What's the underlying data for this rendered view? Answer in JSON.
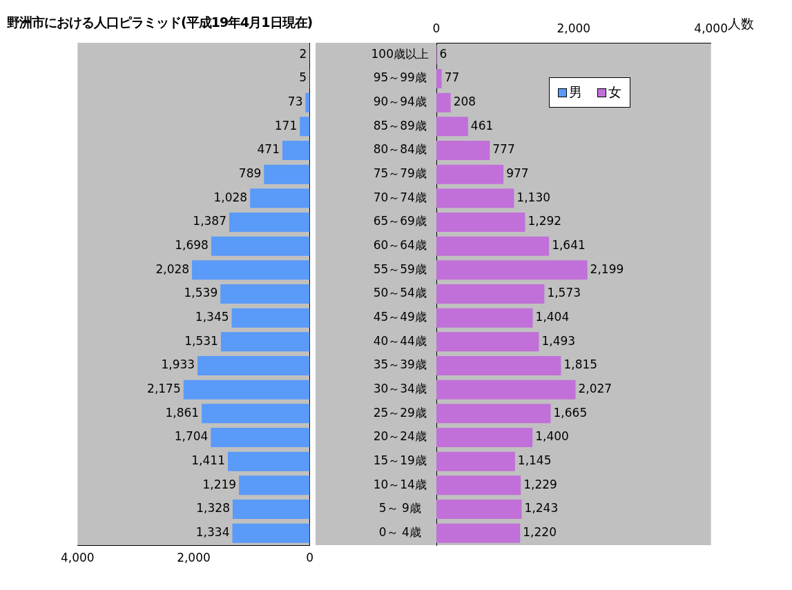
{
  "chart_data": [
    {
      "type": "bar",
      "orientation": "horizontal",
      "title": "野洲市における人口ピラミッド(平成19年4月1日現在)",
      "categories": [
        null,
        null,
        null,
        null,
        null,
        null,
        null,
        null,
        null,
        null,
        null,
        null,
        null,
        null,
        null,
        null,
        null,
        null,
        null,
        null,
        null
      ],
      "series": [
        {
          "name": "男",
          "color": "#5a9af8",
          "values": [
            2,
            5,
            73,
            171,
            471,
            789,
            1028,
            1387,
            1698,
            2028,
            1539,
            1345,
            1531,
            1933,
            2175,
            1861,
            1704,
            1411,
            1219,
            1328,
            1334
          ],
          "value_labels": [
            "2",
            "5",
            "73",
            "171",
            "471",
            "789",
            "1,028",
            "1,387",
            "1,698",
            "2,028",
            "1,539",
            "1,345",
            "1,531",
            "1,933",
            "2,175",
            "1,861",
            "1,704",
            "1,411",
            "1,219",
            "1,328",
            "1,334"
          ]
        }
      ],
      "xlim": [
        4000,
        0
      ],
      "xticks": [
        {
          "value": 4000,
          "label": "4,000"
        },
        {
          "value": 2000,
          "label": "2,000"
        },
        0
      ],
      "tick_labels": "x",
      "grid": false,
      "legend": "top right"
    },
    {
      "type": "bar",
      "orientation": "horizontal",
      "categories": [
        "100歳以上",
        "95～99歳",
        "90～94歳",
        "85～89歳",
        "80～84歳",
        "75～79歳",
        "70～74歳",
        "65～69歳",
        "60～64歳",
        "55～59歳",
        "50～54歳",
        "45～49歳",
        "40～44歳",
        "35～39歳",
        "30～34歳",
        "25～29歳",
        "20～24歳",
        "15～19歳",
        "10～14歳",
        "5～ 9歳",
        "0～ 4歳"
      ],
      "series": [
        {
          "name": "女",
          "color": "#c070d8",
          "axis": "x2",
          "values": [
            6,
            77,
            208,
            461,
            777,
            977,
            1130,
            1292,
            1641,
            2199,
            1573,
            1404,
            1493,
            1815,
            2027,
            1665,
            1400,
            1145,
            1229,
            1243,
            1220
          ],
          "value_labels": [
            "6",
            "77",
            "208",
            "461",
            "777",
            "977",
            "1,130",
            "1,292",
            "1,641",
            "2,199",
            "1,573",
            "1,404",
            "1,493",
            "1,815",
            "2,027",
            "1,665",
            "1,400",
            "1,145",
            "1,229",
            "1,243",
            "1,220"
          ]
        }
      ],
      "x2lim": [
        0,
        4000
      ],
      "x2ticks": [
        0,
        {
          "value": 2000,
          "label": "2,000"
        },
        {
          "value": 4000,
          "label": "4,000"
        }
      ],
      "x2label": "人数",
      "grid": false,
      "legend": "top right"
    }
  ]
}
